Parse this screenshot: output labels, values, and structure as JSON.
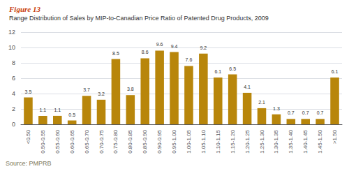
{
  "chart_data": {
    "type": "bar",
    "title": "Figure 13",
    "subtitle": "Range Distribution of Sales by MIP-to-Canadian Price Ratio of Patented Drug Products, 2009",
    "annotations": [
      "Source: PMPRB"
    ],
    "categories": [
      "<0.50",
      "0.50-0.55",
      "0.55-0.60",
      "0.60-0.65",
      "0.65-0.70",
      "0.70-0.75",
      "0.75-0.80",
      "0.80-0.85",
      "0.85-0.90",
      "0.90-0.95",
      "0.95-1.00",
      "1.00-1.05",
      "1.05-1.10",
      "1.10-1.15",
      "1.15-1.20",
      "1.20-1.25",
      "1.25-1.30",
      "1.30-1.35",
      "1.35-1.40",
      "1.40-1.45",
      "1.45-1.50",
      ">1.50"
    ],
    "values": [
      3.5,
      1.1,
      1.1,
      0.5,
      3.7,
      3.2,
      8.5,
      3.8,
      8.6,
      9.6,
      9.4,
      7.6,
      9.2,
      6.1,
      6.5,
      4.1,
      2.1,
      1.3,
      0.7,
      0.7,
      0.7,
      6.1
    ],
    "color": "#b8860b",
    "ylim": [
      0,
      12
    ],
    "yticks": [
      0,
      2,
      4,
      6,
      8,
      10,
      12
    ],
    "grid": true,
    "data_labels": true
  }
}
